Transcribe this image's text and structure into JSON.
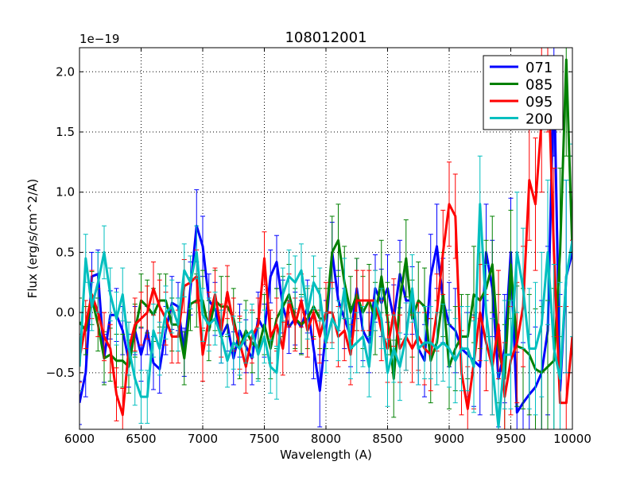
{
  "chart_data": {
    "type": "line",
    "title": "108012001",
    "xlabel": "Wavelength (A)",
    "ylabel": "Flux (erg/s/cm^2/A)",
    "y_offset_label": "1e−19",
    "xlim": [
      6000,
      10000
    ],
    "ylim": [
      -0.97,
      2.2
    ],
    "xticks": [
      6000,
      6500,
      7000,
      7500,
      8000,
      8500,
      9000,
      9500,
      10000
    ],
    "xtick_labels": [
      "6000",
      "6500",
      "7000",
      "7500",
      "8000",
      "8500",
      "9000",
      "9500",
      "10000"
    ],
    "yticks": [
      -0.5,
      0.0,
      0.5,
      1.0,
      1.5,
      2.0
    ],
    "ytick_labels": [
      "−0.5",
      "0.0",
      "0.5",
      "1.0",
      "1.5",
      "2.0"
    ],
    "grid": true,
    "legend_position": "top-right",
    "series": [
      {
        "name": "071",
        "color": "#0000ff",
        "x": [
          6000,
          6050,
          6100,
          6150,
          6200,
          6250,
          6300,
          6350,
          6400,
          6450,
          6500,
          6550,
          6600,
          6650,
          6700,
          6750,
          6800,
          6850,
          6900,
          6950,
          7000,
          7050,
          7100,
          7150,
          7200,
          7250,
          7300,
          7350,
          7400,
          7450,
          7500,
          7550,
          7600,
          7650,
          7700,
          7750,
          7800,
          7850,
          7900,
          7950,
          8000,
          8050,
          8100,
          8150,
          8200,
          8250,
          8300,
          8350,
          8400,
          8450,
          8500,
          8550,
          8600,
          8650,
          8700,
          8750,
          8800,
          8850,
          8900,
          8950,
          9000,
          9050,
          9100,
          9150,
          9200,
          9250,
          9300,
          9350,
          9400,
          9450,
          9500,
          9550,
          9600,
          9650,
          9700,
          9750,
          9800,
          9850,
          9900,
          9950,
          10000
        ],
        "values": [
          -0.75,
          -0.5,
          0.3,
          0.32,
          -0.38,
          -0.02,
          -0.02,
          -0.15,
          -0.4,
          -0.15,
          -0.35,
          -0.15,
          -0.42,
          -0.47,
          -0.15,
          0.08,
          0.05,
          -0.33,
          0.2,
          0.72,
          0.55,
          0.1,
          0.03,
          -0.2,
          -0.1,
          -0.38,
          -0.15,
          -0.28,
          -0.38,
          -0.05,
          -0.15,
          0.3,
          0.42,
          0.05,
          -0.12,
          -0.05,
          -0.12,
          0.05,
          -0.3,
          -0.65,
          -0.15,
          0.5,
          0.1,
          -0.05,
          -0.2,
          0.2,
          -0.15,
          -0.25,
          0.2,
          0.08,
          0.2,
          -0.05,
          0.32,
          0.1,
          0.1,
          -0.3,
          -0.4,
          0.3,
          0.55,
          0.1,
          -0.1,
          -0.15,
          -0.3,
          -0.35,
          -0.4,
          -0.45,
          0.5,
          0.2,
          -0.55,
          -0.3,
          0.5,
          -0.83,
          -0.75,
          -0.68,
          -0.62,
          -0.5,
          -0.15,
          2.0,
          -0.65,
          0.3,
          0.5
        ],
        "errors": [
          0.18,
          0.2,
          0.2,
          0.2,
          0.2,
          0.2,
          0.22,
          0.2,
          0.22,
          0.2,
          0.22,
          0.2,
          0.22,
          0.2,
          0.2,
          0.22,
          0.2,
          0.2,
          0.22,
          0.3,
          0.25,
          0.22,
          0.22,
          0.22,
          0.22,
          0.22,
          0.22,
          0.22,
          0.22,
          0.22,
          0.22,
          0.22,
          0.22,
          0.22,
          0.22,
          0.22,
          0.22,
          0.22,
          0.25,
          0.3,
          0.25,
          0.25,
          0.25,
          0.25,
          0.25,
          0.25,
          0.25,
          0.25,
          0.28,
          0.28,
          0.28,
          0.28,
          0.28,
          0.28,
          0.28,
          0.3,
          0.3,
          0.35,
          0.35,
          0.35,
          0.35,
          0.35,
          0.35,
          0.35,
          0.38,
          0.4,
          0.4,
          0.4,
          0.4,
          0.45,
          0.45,
          0.5,
          0.5,
          0.5,
          0.5,
          0.6,
          0.7,
          0.7,
          0.8,
          0.8,
          0.8
        ]
      },
      {
        "name": "085",
        "color": "#008000",
        "x": [
          6000,
          6050,
          6100,
          6150,
          6200,
          6250,
          6300,
          6350,
          6400,
          6450,
          6500,
          6550,
          6600,
          6650,
          6700,
          6750,
          6800,
          6850,
          6900,
          6950,
          7000,
          7050,
          7100,
          7150,
          7200,
          7250,
          7300,
          7350,
          7400,
          7450,
          7500,
          7550,
          7600,
          7650,
          7700,
          7750,
          7800,
          7850,
          7900,
          7950,
          8000,
          8050,
          8100,
          8150,
          8200,
          8250,
          8300,
          8350,
          8400,
          8450,
          8500,
          8550,
          8600,
          8650,
          8700,
          8750,
          8800,
          8850,
          8900,
          8950,
          9000,
          9050,
          9100,
          9150,
          9200,
          9250,
          9300,
          9350,
          9400,
          9450,
          9500,
          9550,
          9600,
          9650,
          9700,
          9750,
          9800,
          9850,
          9900,
          9950,
          10000
        ],
        "values": [
          -0.08,
          -0.15,
          0.12,
          -0.1,
          -0.38,
          -0.35,
          -0.4,
          -0.4,
          -0.45,
          -0.15,
          0.1,
          0.05,
          -0.02,
          0.1,
          0.1,
          -0.1,
          -0.1,
          -0.38,
          0.07,
          0.1,
          0.1,
          -0.15,
          0.1,
          0.05,
          0.05,
          -0.05,
          -0.3,
          -0.15,
          -0.25,
          -0.3,
          -0.1,
          -0.3,
          -0.05,
          0.05,
          0.15,
          -0.05,
          -0.1,
          -0.05,
          0.05,
          -0.05,
          -0.05,
          0.5,
          0.6,
          0.25,
          0.0,
          0.15,
          0.0,
          0.1,
          -0.05,
          0.3,
          -0.05,
          -0.55,
          0.1,
          0.45,
          -0.05,
          0.1,
          0.05,
          -0.4,
          -0.25,
          0.15,
          -0.45,
          -0.3,
          -0.2,
          -0.2,
          0.15,
          0.1,
          0.2,
          0.4,
          -0.3,
          -0.55,
          0.4,
          -0.28,
          -0.3,
          -0.35,
          -0.47,
          -0.5,
          -0.45,
          -0.4,
          0.5,
          2.1,
          0.5
        ],
        "errors": [
          0.2,
          0.2,
          0.22,
          0.22,
          0.22,
          0.22,
          0.22,
          0.22,
          0.22,
          0.22,
          0.22,
          0.22,
          0.22,
          0.22,
          0.22,
          0.22,
          0.22,
          0.22,
          0.22,
          0.22,
          0.25,
          0.25,
          0.25,
          0.25,
          0.25,
          0.25,
          0.25,
          0.25,
          0.25,
          0.25,
          0.25,
          0.25,
          0.25,
          0.25,
          0.25,
          0.25,
          0.25,
          0.25,
          0.25,
          0.25,
          0.25,
          0.3,
          0.3,
          0.3,
          0.3,
          0.3,
          0.3,
          0.3,
          0.3,
          0.3,
          0.3,
          0.32,
          0.32,
          0.32,
          0.32,
          0.32,
          0.32,
          0.35,
          0.35,
          0.35,
          0.35,
          0.35,
          0.35,
          0.35,
          0.4,
          0.4,
          0.4,
          0.4,
          0.45,
          0.45,
          0.45,
          0.5,
          0.5,
          0.5,
          0.5,
          0.55,
          0.55,
          0.6,
          0.7,
          0.8,
          0.8
        ]
      },
      {
        "name": "095",
        "color": "#ff0000",
        "x": [
          6000,
          6050,
          6100,
          6150,
          6200,
          6250,
          6300,
          6350,
          6400,
          6450,
          6500,
          6550,
          6600,
          6650,
          6700,
          6750,
          6800,
          6850,
          6900,
          6950,
          7000,
          7050,
          7100,
          7150,
          7200,
          7250,
          7300,
          7350,
          7400,
          7450,
          7500,
          7550,
          7600,
          7650,
          7700,
          7750,
          7800,
          7850,
          7900,
          7950,
          8000,
          8050,
          8100,
          8150,
          8200,
          8250,
          8300,
          8350,
          8400,
          8450,
          8500,
          8550,
          8600,
          8650,
          8700,
          8750,
          8800,
          8850,
          8900,
          8950,
          9000,
          9050,
          9100,
          9150,
          9200,
          9250,
          9300,
          9350,
          9400,
          9450,
          9500,
          9550,
          9600,
          9650,
          9700,
          9750,
          9800,
          9850,
          9900,
          9950,
          10000
        ],
        "values": [
          -0.38,
          -0.1,
          0.15,
          0.0,
          -0.2,
          -0.3,
          -0.68,
          -0.85,
          -0.3,
          -0.1,
          -0.05,
          0.0,
          0.2,
          0.05,
          -0.05,
          -0.2,
          -0.2,
          0.22,
          0.25,
          0.3,
          -0.35,
          -0.05,
          0.15,
          -0.15,
          0.17,
          -0.1,
          -0.25,
          -0.45,
          -0.2,
          -0.1,
          0.45,
          -0.2,
          -0.1,
          -0.3,
          0.1,
          -0.1,
          0.1,
          -0.15,
          0.0,
          -0.2,
          0.0,
          0.0,
          -0.2,
          -0.15,
          -0.35,
          0.1,
          0.1,
          0.1,
          0.1,
          -0.15,
          -0.3,
          0.0,
          -0.3,
          -0.2,
          -0.3,
          -0.2,
          -0.3,
          -0.35,
          0.0,
          0.5,
          0.9,
          0.8,
          -0.5,
          -0.8,
          -0.42,
          0.0,
          -0.25,
          -0.45,
          -0.1,
          -0.7,
          -0.4,
          -0.25,
          0.05,
          1.1,
          0.9,
          1.6,
          2.1,
          0.5,
          -0.75,
          -0.75,
          -0.2
        ],
        "errors": [
          0.2,
          0.2,
          0.2,
          0.2,
          0.2,
          0.2,
          0.22,
          0.22,
          0.22,
          0.22,
          0.22,
          0.22,
          0.22,
          0.22,
          0.22,
          0.22,
          0.22,
          0.22,
          0.22,
          0.22,
          0.22,
          0.22,
          0.22,
          0.22,
          0.22,
          0.22,
          0.22,
          0.22,
          0.22,
          0.22,
          0.22,
          0.22,
          0.22,
          0.22,
          0.22,
          0.22,
          0.22,
          0.22,
          0.22,
          0.22,
          0.25,
          0.25,
          0.25,
          0.25,
          0.25,
          0.25,
          0.25,
          0.25,
          0.25,
          0.25,
          0.28,
          0.28,
          0.28,
          0.28,
          0.28,
          0.28,
          0.3,
          0.3,
          0.32,
          0.35,
          0.35,
          0.35,
          0.35,
          0.35,
          0.38,
          0.4,
          0.4,
          0.4,
          0.45,
          0.45,
          0.45,
          0.5,
          0.5,
          0.5,
          0.55,
          0.6,
          0.6,
          0.7,
          0.8,
          0.8,
          0.8
        ]
      },
      {
        "name": "200",
        "color": "#00bfbf",
        "x": [
          6000,
          6050,
          6100,
          6150,
          6200,
          6250,
          6300,
          6350,
          6400,
          6450,
          6500,
          6550,
          6600,
          6650,
          6700,
          6750,
          6800,
          6850,
          6900,
          6950,
          7000,
          7050,
          7100,
          7150,
          7200,
          7250,
          7300,
          7350,
          7400,
          7450,
          7500,
          7550,
          7600,
          7650,
          7700,
          7750,
          7800,
          7850,
          7900,
          7950,
          8000,
          8050,
          8100,
          8150,
          8200,
          8250,
          8300,
          8350,
          8400,
          8450,
          8500,
          8550,
          8600,
          8650,
          8700,
          8750,
          8800,
          8850,
          8900,
          8950,
          9000,
          9050,
          9100,
          9150,
          9200,
          9250,
          9300,
          9350,
          9400,
          9450,
          9500,
          9550,
          9600,
          9650,
          9700,
          9750,
          9800,
          9850,
          9900,
          9950,
          10000
        ],
        "values": [
          -0.45,
          0.45,
          0.05,
          0.25,
          0.5,
          0.15,
          -0.05,
          0.15,
          -0.3,
          -0.55,
          -0.7,
          -0.7,
          -0.15,
          -0.3,
          0.0,
          0.05,
          -0.1,
          0.35,
          0.25,
          0.5,
          -0.02,
          -0.1,
          -0.05,
          -0.2,
          -0.4,
          -0.25,
          -0.3,
          -0.2,
          -0.15,
          -0.35,
          -0.2,
          -0.45,
          -0.5,
          0.15,
          0.3,
          0.25,
          0.35,
          0.0,
          0.25,
          0.15,
          -0.25,
          -0.05,
          -0.15,
          0.2,
          -0.3,
          -0.25,
          -0.2,
          -0.45,
          0.1,
          -0.05,
          -0.5,
          -0.3,
          -0.45,
          -0.2,
          0.2,
          -0.3,
          -0.25,
          -0.25,
          -0.3,
          -0.25,
          -0.3,
          -0.4,
          -0.3,
          -0.3,
          -0.45,
          0.9,
          0.0,
          -0.45,
          -0.95,
          -0.35,
          -0.35,
          0.5,
          0.2,
          -0.3,
          -0.3,
          -0.1,
          0.5,
          -0.3,
          -0.55,
          0.3,
          0.6
        ],
        "errors": [
          0.2,
          0.2,
          0.2,
          0.25,
          0.22,
          0.22,
          0.22,
          0.22,
          0.22,
          0.22,
          0.22,
          0.22,
          0.22,
          0.22,
          0.22,
          0.22,
          0.22,
          0.22,
          0.22,
          0.22,
          0.22,
          0.22,
          0.22,
          0.22,
          0.22,
          0.22,
          0.22,
          0.22,
          0.22,
          0.22,
          0.22,
          0.22,
          0.22,
          0.22,
          0.22,
          0.22,
          0.22,
          0.22,
          0.22,
          0.22,
          0.25,
          0.25,
          0.25,
          0.25,
          0.25,
          0.25,
          0.25,
          0.25,
          0.25,
          0.25,
          0.28,
          0.28,
          0.28,
          0.28,
          0.28,
          0.3,
          0.3,
          0.3,
          0.3,
          0.32,
          0.32,
          0.35,
          0.35,
          0.35,
          0.38,
          0.4,
          0.4,
          0.4,
          0.45,
          0.45,
          0.45,
          0.5,
          0.5,
          0.5,
          0.55,
          0.6,
          0.6,
          0.7,
          0.8,
          0.8,
          0.8
        ]
      }
    ]
  }
}
